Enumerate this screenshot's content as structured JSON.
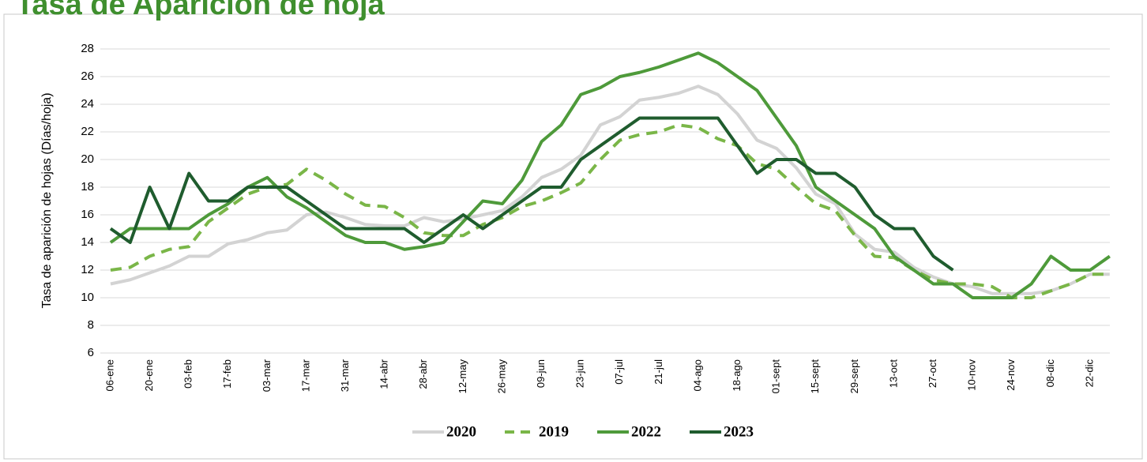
{
  "chart_data": {
    "type": "line",
    "title": "Tasa de Aparición de hoja",
    "y_label": "Tasa de aparición de hojas (Días/hoja)",
    "categories": [
      "06-ene",
      null,
      "20-ene",
      null,
      "03-feb",
      null,
      "17-feb",
      null,
      "03-mar",
      null,
      "17-mar",
      null,
      "31-mar",
      null,
      "14-abr",
      null,
      "28-abr",
      null,
      "12-may",
      null,
      "26-may",
      null,
      "09-jun",
      null,
      "23-jun",
      null,
      "07-jul",
      null,
      "21-jul",
      null,
      "04-ago",
      null,
      "18-ago",
      null,
      "01-sept",
      null,
      "15-sept",
      null,
      "29-sept",
      null,
      "13-oct",
      null,
      "27-oct",
      null,
      "10-nov",
      null,
      "24-nov",
      null,
      "08-dic",
      null,
      "22-dic",
      null
    ],
    "ylim": [
      6,
      28
    ],
    "yticks": [
      6,
      8,
      10,
      12,
      14,
      16,
      18,
      20,
      22,
      24,
      26,
      28
    ],
    "grid": true,
    "series": [
      {
        "name": "2020",
        "color": "#d3d3d3",
        "dashed": false,
        "values": [
          11,
          11.3,
          11.8,
          12.3,
          13,
          13,
          13.9,
          14.2,
          14.7,
          14.9,
          16,
          16.2,
          15.8,
          15.3,
          15.2,
          15.2,
          15.8,
          15.5,
          15.7,
          16,
          16.3,
          17.3,
          18.7,
          19.3,
          20.3,
          22.5,
          23.1,
          24.3,
          24.5,
          24.8,
          25.3,
          24.7,
          23.3,
          21.4,
          20.8,
          19.4,
          17.5,
          16.8,
          14.6,
          13.5,
          13.3,
          12.2,
          11.5,
          11,
          10.8,
          10.3,
          10.3,
          10.3,
          10.5,
          11,
          11.7,
          11.7
        ]
      },
      {
        "name": "2019",
        "color": "#7ab648",
        "dashed": true,
        "values": [
          12,
          12.2,
          13,
          13.5,
          13.7,
          15.5,
          16.5,
          17.5,
          18,
          18.2,
          19.3,
          18.5,
          17.5,
          16.7,
          16.6,
          15.8,
          14.7,
          14.5,
          14.5,
          15.3,
          15.8,
          16.6,
          17,
          17.6,
          18.3,
          20,
          21.4,
          21.8,
          22,
          22.5,
          22.3,
          21.5,
          21,
          19.7,
          19.3,
          18,
          16.8,
          16.3,
          14.5,
          13,
          12.9,
          12,
          11.3,
          11,
          11,
          10.8,
          10,
          10,
          10.5,
          11,
          11.7,
          11.7
        ]
      },
      {
        "name": "2022",
        "color": "#4e9a3a",
        "dashed": false,
        "values": [
          14,
          15,
          15,
          15,
          15,
          16,
          16.8,
          18,
          18.7,
          17.3,
          16.5,
          15.5,
          14.5,
          14,
          14,
          13.5,
          13.7,
          14,
          15.5,
          17,
          16.8,
          18.5,
          21.3,
          22.5,
          24.7,
          25.2,
          26,
          26.3,
          26.7,
          27.2,
          27.7,
          27,
          26,
          25,
          23,
          21,
          18,
          17,
          16,
          15,
          13,
          12,
          11,
          11,
          10,
          10,
          10,
          11,
          13,
          12,
          12,
          13
        ]
      },
      {
        "name": "2023",
        "color": "#1f5c2e",
        "dashed": false,
        "values": [
          15,
          14,
          18,
          15,
          19,
          17,
          17,
          18,
          18,
          18,
          17,
          16,
          15,
          15,
          15,
          15,
          14,
          15,
          16,
          15,
          16,
          17,
          18,
          18,
          20,
          21,
          22,
          23,
          23,
          23,
          23,
          23,
          21,
          19,
          20,
          20,
          19,
          19,
          18,
          16,
          15,
          15,
          13,
          12,
          null,
          null,
          null,
          null,
          null,
          null,
          null,
          null
        ]
      }
    ]
  }
}
